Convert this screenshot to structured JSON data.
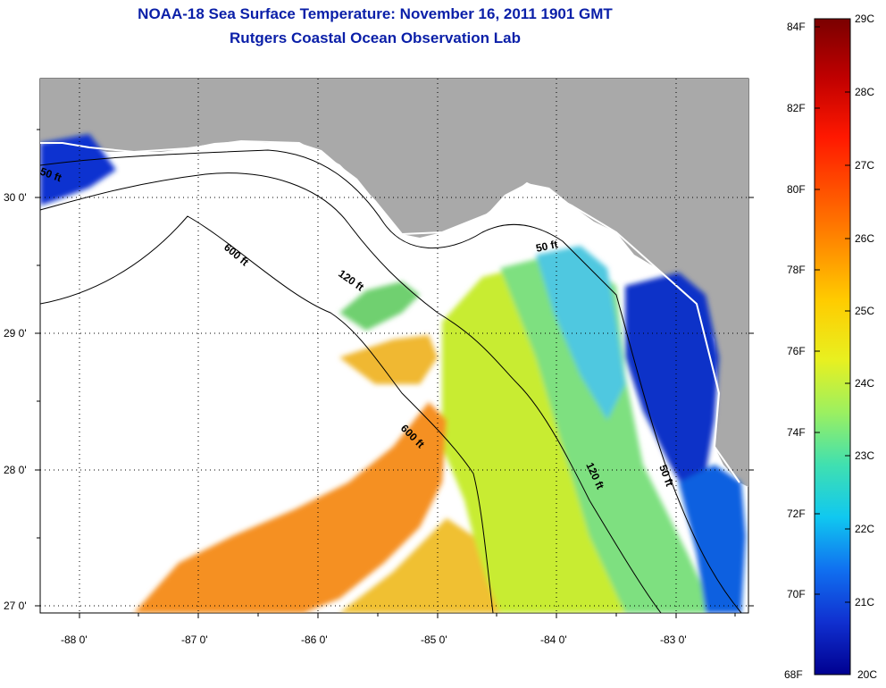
{
  "title": {
    "line1": "NOAA-18 Sea Surface Temperature:  November 16, 2011 1901 GMT",
    "line2": "Rutgers Coastal Ocean Observation Lab"
  },
  "axes": {
    "longitude_ticks": [
      "-88 0'",
      "-87 0'",
      "-86 0'",
      "-85 0'",
      "-84 0'",
      "-83 0'"
    ],
    "latitude_ticks": [
      "30 0'",
      "29 0'",
      "28 0'",
      "27 0'"
    ]
  },
  "isobaths": [
    {
      "label": "600 ft"
    },
    {
      "label": "120 ft"
    },
    {
      "label": "50 ft"
    },
    {
      "label": "600 ft"
    },
    {
      "label": "120 ft"
    },
    {
      "label": "50 ft"
    },
    {
      "label": "50 ft"
    }
  ],
  "colorbar": {
    "fahrenheit": [
      "84F",
      "82F",
      "80F",
      "78F",
      "76F",
      "74F",
      "72F",
      "70F",
      "68F"
    ],
    "celsius": [
      "29C",
      "28C",
      "27C",
      "26C",
      "25C",
      "24C",
      "23C",
      "22C",
      "21C",
      "20C"
    ],
    "colors": [
      "#7a0000",
      "#c00000",
      "#ff1800",
      "#ff7a00",
      "#ffcc00",
      "#e8f020",
      "#9cf060",
      "#40e0b0",
      "#10c8f0",
      "#1070f0",
      "#1030d0",
      "#000090"
    ]
  },
  "colors": {
    "land": "#a9a9a9",
    "no_data": "#ffffff",
    "title": "#0a1fa8"
  }
}
